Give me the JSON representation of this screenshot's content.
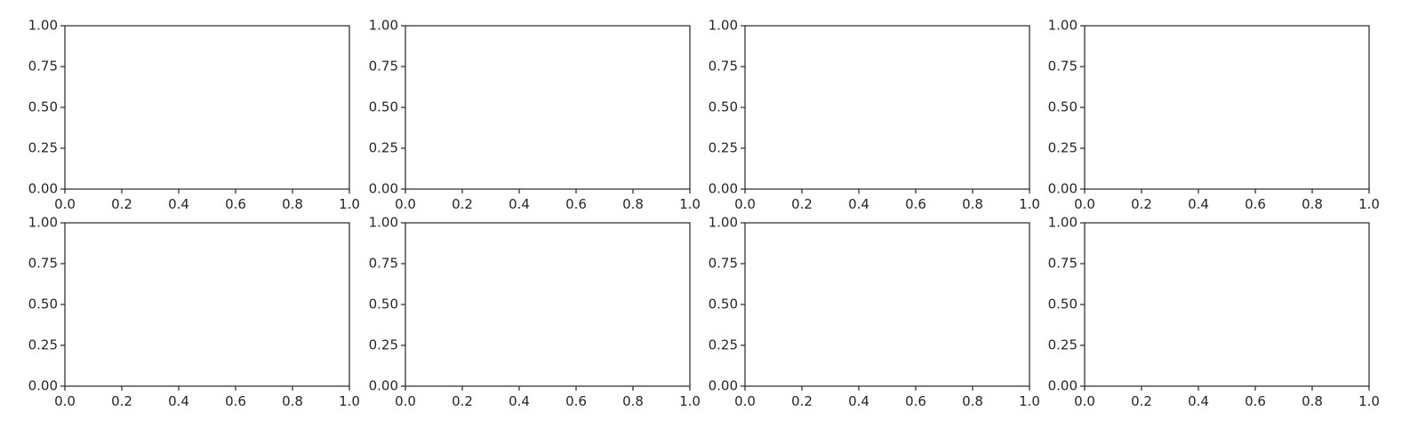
{
  "figure": {
    "background": "#ffffff",
    "axes_color": "#262626",
    "text_color": "#262626"
  },
  "chart_data": [
    {
      "type": "line",
      "title": "",
      "xlabel": "",
      "ylabel": "",
      "series": [],
      "xlim": [
        0.0,
        1.0
      ],
      "ylim": [
        0.0,
        1.0
      ],
      "xticks": [
        "0.0",
        "0.2",
        "0.4",
        "0.6",
        "0.8",
        "1.0"
      ],
      "yticks": [
        "0.00",
        "0.25",
        "0.50",
        "0.75",
        "1.00"
      ],
      "grid": false
    },
    {
      "type": "line",
      "title": "",
      "xlabel": "",
      "ylabel": "",
      "series": [],
      "xlim": [
        0.0,
        1.0
      ],
      "ylim": [
        0.0,
        1.0
      ],
      "xticks": [
        "0.0",
        "0.2",
        "0.4",
        "0.6",
        "0.8",
        "1.0"
      ],
      "yticks": [
        "0.00",
        "0.25",
        "0.50",
        "0.75",
        "1.00"
      ],
      "grid": false
    },
    {
      "type": "line",
      "title": "",
      "xlabel": "",
      "ylabel": "",
      "series": [],
      "xlim": [
        0.0,
        1.0
      ],
      "ylim": [
        0.0,
        1.0
      ],
      "xticks": [
        "0.0",
        "0.2",
        "0.4",
        "0.6",
        "0.8",
        "1.0"
      ],
      "yticks": [
        "0.00",
        "0.25",
        "0.50",
        "0.75",
        "1.00"
      ],
      "grid": false
    },
    {
      "type": "line",
      "title": "",
      "xlabel": "",
      "ylabel": "",
      "series": [],
      "xlim": [
        0.0,
        1.0
      ],
      "ylim": [
        0.0,
        1.0
      ],
      "xticks": [
        "0.0",
        "0.2",
        "0.4",
        "0.6",
        "0.8",
        "1.0"
      ],
      "yticks": [
        "0.00",
        "0.25",
        "0.50",
        "0.75",
        "1.00"
      ],
      "grid": false
    },
    {
      "type": "line",
      "title": "",
      "xlabel": "",
      "ylabel": "",
      "series": [],
      "xlim": [
        0.0,
        1.0
      ],
      "ylim": [
        0.0,
        1.0
      ],
      "xticks": [
        "0.0",
        "0.2",
        "0.4",
        "0.6",
        "0.8",
        "1.0"
      ],
      "yticks": [
        "0.00",
        "0.25",
        "0.50",
        "0.75",
        "1.00"
      ],
      "grid": false
    },
    {
      "type": "line",
      "title": "",
      "xlabel": "",
      "ylabel": "",
      "series": [],
      "xlim": [
        0.0,
        1.0
      ],
      "ylim": [
        0.0,
        1.0
      ],
      "xticks": [
        "0.0",
        "0.2",
        "0.4",
        "0.6",
        "0.8",
        "1.0"
      ],
      "yticks": [
        "0.00",
        "0.25",
        "0.50",
        "0.75",
        "1.00"
      ],
      "grid": false
    },
    {
      "type": "line",
      "title": "",
      "xlabel": "",
      "ylabel": "",
      "series": [],
      "xlim": [
        0.0,
        1.0
      ],
      "ylim": [
        0.0,
        1.0
      ],
      "xticks": [
        "0.0",
        "0.2",
        "0.4",
        "0.6",
        "0.8",
        "1.0"
      ],
      "yticks": [
        "0.00",
        "0.25",
        "0.50",
        "0.75",
        "1.00"
      ],
      "grid": false
    },
    {
      "type": "line",
      "title": "",
      "xlabel": "",
      "ylabel": "",
      "series": [],
      "xlim": [
        0.0,
        1.0
      ],
      "ylim": [
        0.0,
        1.0
      ],
      "xticks": [
        "0.0",
        "0.2",
        "0.4",
        "0.6",
        "0.8",
        "1.0"
      ],
      "yticks": [
        "0.00",
        "0.25",
        "0.50",
        "0.75",
        "1.00"
      ],
      "grid": false
    }
  ]
}
